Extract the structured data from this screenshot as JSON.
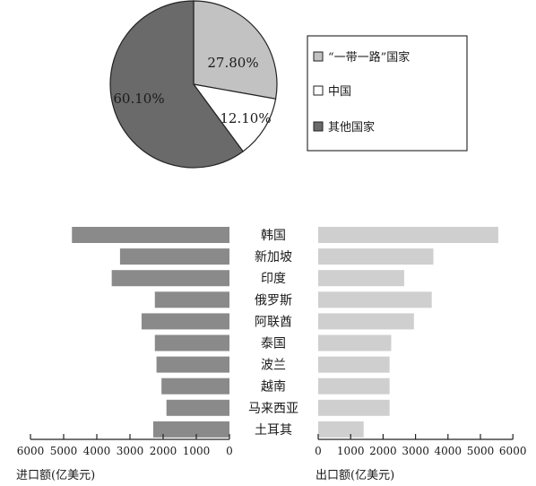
{
  "chart_data": [
    {
      "type": "pie",
      "title": "",
      "slices": [
        {
          "name": "“一带一路”国家",
          "value": 27.8,
          "label": "27.80%",
          "color": "#c2c2c2"
        },
        {
          "name": "中国",
          "value": 12.1,
          "label": "12.10%",
          "color": "#ffffff"
        },
        {
          "name": "其他国家",
          "value": 60.1,
          "label": "60.10%",
          "color": "#6a6a6a"
        }
      ],
      "legend_position": "right"
    },
    {
      "type": "bar",
      "orientation": "horizontal",
      "title": "",
      "xlabel": "进口额(亿美元)",
      "xlim": [
        0,
        6000
      ],
      "ticks": [
        6000,
        5000,
        4000,
        3000,
        2000,
        1000,
        0
      ],
      "direction": "leftward",
      "categories": [
        "韩国",
        "新加坡",
        "印度",
        "俄罗斯",
        "阿联酋",
        "泰国",
        "波兰",
        "越南",
        "马来西亚",
        "土耳其"
      ],
      "values": [
        4750,
        3300,
        3550,
        2250,
        2650,
        2250,
        2200,
        2050,
        1900,
        2300
      ],
      "color": "#8a8a8a"
    },
    {
      "type": "bar",
      "orientation": "horizontal",
      "title": "",
      "xlabel": "出口额(亿美元)",
      "xlim": [
        0,
        6000
      ],
      "ticks": [
        0,
        1000,
        2000,
        3000,
        4000,
        5000,
        6000
      ],
      "direction": "rightward",
      "categories": [
        "韩国",
        "新加坡",
        "印度",
        "俄罗斯",
        "阿联酋",
        "泰国",
        "波兰",
        "越南",
        "马来西亚",
        "土耳其"
      ],
      "values": [
        5550,
        3550,
        2650,
        3500,
        2950,
        2250,
        2200,
        2200,
        2200,
        1400
      ],
      "color": "#cfcfcf"
    }
  ]
}
